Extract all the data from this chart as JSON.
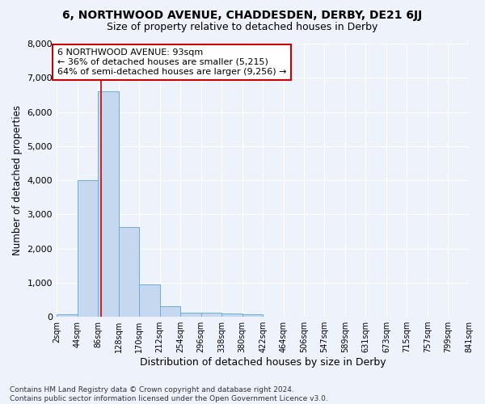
{
  "title": "6, NORTHWOOD AVENUE, CHADDESDEN, DERBY, DE21 6JJ",
  "subtitle": "Size of property relative to detached houses in Derby",
  "xlabel": "Distribution of detached houses by size in Derby",
  "ylabel": "Number of detached properties",
  "bar_color": "#c5d8f0",
  "bar_edge_color": "#6baed6",
  "background_color": "#eef2fb",
  "grid_color": "#ffffff",
  "annotation_box_edgecolor": "#cc0000",
  "vline_color": "#cc0000",
  "annotation_text": "6 NORTHWOOD AVENUE: 93sqm\n← 36% of detached houses are smaller (5,215)\n64% of semi-detached houses are larger (9,256) →",
  "property_size_sqm": 93,
  "bin_edges": [
    2,
    44,
    86,
    128,
    170,
    212,
    254,
    296,
    338,
    380,
    422,
    464,
    506,
    547,
    589,
    631,
    673,
    715,
    757,
    799,
    841
  ],
  "bar_heights": [
    75,
    4000,
    6600,
    2620,
    950,
    310,
    130,
    120,
    105,
    65,
    0,
    0,
    0,
    0,
    0,
    0,
    0,
    0,
    0,
    0
  ],
  "ylim": [
    0,
    8000
  ],
  "yticks": [
    0,
    1000,
    2000,
    3000,
    4000,
    5000,
    6000,
    7000,
    8000
  ],
  "footer_text": "Contains HM Land Registry data © Crown copyright and database right 2024.\nContains public sector information licensed under the Open Government Licence v3.0."
}
